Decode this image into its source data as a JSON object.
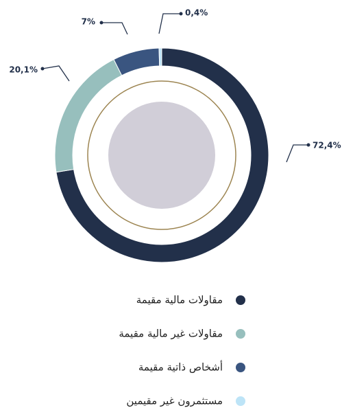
{
  "chart_data": {
    "type": "donut",
    "categories": [
      "مقاولات مالية مقيمة",
      "مقاولات غير مالية مقيمة",
      "أشخاص ذاتية مقيمة",
      "مستثمرون غير مقيمين"
    ],
    "values": [
      72.4,
      20.1,
      7,
      0.4
    ],
    "value_labels": [
      "72,4%",
      "20,1%",
      "7%",
      "0,4%"
    ],
    "colors": [
      "#22304a",
      "#97bfbd",
      "#3a5580",
      "#bde4f7"
    ]
  }
}
